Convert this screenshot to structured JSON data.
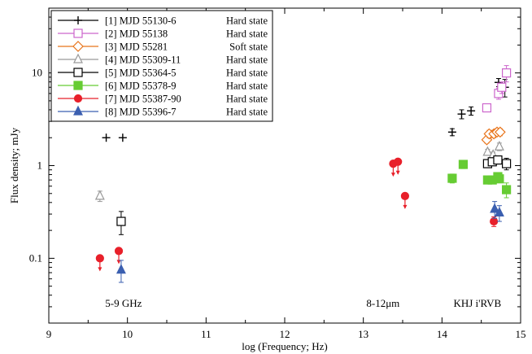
{
  "chart_data": {
    "type": "scatter",
    "title": "",
    "xlabel": "log (Frequency; Hz)",
    "ylabel": "Flux density; mJy",
    "xlim": [
      9,
      15
    ],
    "ylim": [
      0.02,
      50
    ],
    "ylog": true,
    "grid": false,
    "legend_position": "top-left",
    "x_ticks": [
      9,
      10,
      11,
      12,
      13,
      14,
      15
    ],
    "x_tick_labels": [
      "9",
      "10",
      "11",
      "12",
      "13",
      "14",
      "15"
    ],
    "y_ticks": [
      0.1,
      1,
      10
    ],
    "y_tick_labels": [
      "0.1",
      "1",
      "10"
    ],
    "annotations": [
      {
        "text": "5-9 GHz",
        "x": 9.95,
        "y": 0.03
      },
      {
        "text": "8-12μm",
        "x": 13.25,
        "y": 0.03
      },
      {
        "text": "KHJ i'RVB",
        "x": 14.45,
        "y": 0.03
      }
    ],
    "series": [
      {
        "name": "[1] MJD 55130-6",
        "state": "Hard state",
        "marker": "plus",
        "color": "#000000",
        "points": [
          [
            9.73,
            2.0,
            0
          ],
          [
            9.94,
            2.0,
            0
          ],
          [
            14.13,
            2.3,
            0.2
          ],
          [
            14.25,
            3.6,
            0.4
          ],
          [
            14.37,
            3.9,
            0.4
          ],
          [
            14.72,
            7.9,
            0.8
          ],
          [
            14.8,
            7.0,
            1.5
          ]
        ]
      },
      {
        "name": "[2] MJD 55138",
        "state": "Hard state",
        "marker": "open-square",
        "color": "#cc66cc",
        "points": [
          [
            14.57,
            4.2,
            0.4
          ],
          [
            14.72,
            6.0,
            0.8
          ],
          [
            14.76,
            7.0,
            1.0
          ],
          [
            14.82,
            10.0,
            2.0
          ]
        ]
      },
      {
        "name": "[3] MJD 55281",
        "state": "Soft state",
        "marker": "open-diamond",
        "color": "#e8741a",
        "points": [
          [
            14.57,
            1.9,
            0.15
          ],
          [
            14.6,
            2.2,
            0.2
          ],
          [
            14.66,
            2.2,
            0.2
          ],
          [
            14.7,
            2.3,
            0.2
          ],
          [
            14.74,
            2.3,
            0.2
          ]
        ]
      },
      {
        "name": "[4] MJD 55309-11",
        "state": "Hard state",
        "marker": "open-triangle",
        "color": "#999999",
        "points": [
          [
            9.65,
            0.47,
            0.06
          ],
          [
            14.58,
            1.4,
            0.1
          ],
          [
            14.65,
            1.3,
            0.1
          ],
          [
            14.73,
            1.6,
            0.15
          ]
        ]
      },
      {
        "name": "[5] MJD 55364-5",
        "state": "Hard state",
        "marker": "open-square",
        "color": "#000000",
        "points": [
          [
            9.92,
            0.25,
            0.07
          ],
          [
            14.58,
            1.05,
            0.08
          ],
          [
            14.64,
            1.1,
            0.08
          ],
          [
            14.71,
            1.15,
            0.08
          ],
          [
            14.82,
            1.05,
            0.15
          ]
        ]
      },
      {
        "name": "[6] MJD 55378-9",
        "state": "Hard state",
        "marker": "filled-square",
        "color": "#66cc33",
        "points": [
          [
            14.13,
            0.73,
            0.08
          ],
          [
            14.27,
            1.03,
            0.1
          ],
          [
            14.58,
            0.7,
            0.05
          ],
          [
            14.64,
            0.7,
            0.05
          ],
          [
            14.71,
            0.76,
            0.06
          ],
          [
            14.73,
            0.72,
            0.06
          ],
          [
            14.82,
            0.55,
            0.1
          ]
        ]
      },
      {
        "name": "[7] MJD 55387-90",
        "state": "Hard state",
        "marker": "filled-circle",
        "color": "#e8202a",
        "upper_limits": true,
        "points": [
          [
            9.65,
            0.1,
            0
          ],
          [
            9.89,
            0.12,
            0
          ],
          [
            13.38,
            1.05,
            0
          ],
          [
            13.44,
            1.1,
            0
          ],
          [
            13.53,
            0.47,
            0
          ],
          [
            14.66,
            0.25,
            0.03
          ]
        ]
      },
      {
        "name": "[8] MJD 55396-7",
        "state": "Hard state",
        "marker": "filled-triangle",
        "color": "#3b5fb0",
        "points": [
          [
            9.92,
            0.075,
            0.02
          ],
          [
            14.67,
            0.34,
            0.07
          ],
          [
            14.73,
            0.31,
            0.06
          ]
        ]
      }
    ]
  }
}
